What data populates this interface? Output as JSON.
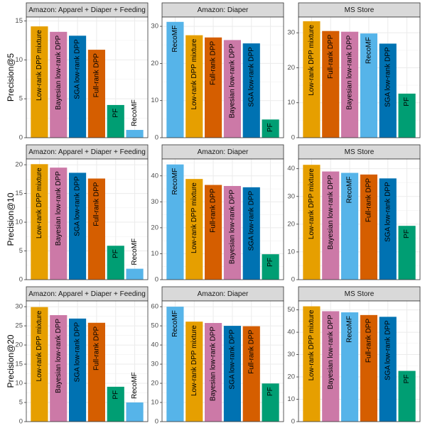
{
  "chart_data": {
    "type": "bar",
    "grid": true,
    "legend": "none",
    "colors": {
      "Low-rank DPP mixture": "#E69F00",
      "Bayesian low-rank DPP": "#CC79A7",
      "SGA low-rank DPP": "#0072B2",
      "Full-rank DPP": "#D55E00",
      "PF": "#009E73",
      "RecoMF": "#56B4E9"
    },
    "rows": [
      {
        "ylabel": "Precision@5",
        "panels": [
          {
            "title": "Amazon: Apparel + Diaper + Feeding",
            "ylim": [
              0,
              15.5
            ],
            "yticks": [
              0,
              5,
              10,
              15
            ],
            "categories": [
              "Low-rank DPP mixture",
              "Bayesian low-rank DPP",
              "SGA low-rank DPP",
              "Full-rank DPP",
              "PF",
              "RecoMF"
            ],
            "values": [
              14.3,
              13.6,
              13.1,
              11.3,
              4.2,
              1.0
            ]
          },
          {
            "title": "Amazon: Diaper",
            "ylim": [
              0,
              32.5
            ],
            "yticks": [
              0,
              10,
              20,
              30
            ],
            "categories": [
              "RecoMF",
              "Low-rank DPP mixture",
              "Full-rank DPP",
              "Bayesian low-rank DPP",
              "SGA low-rank DPP",
              "PF"
            ],
            "values": [
              31.2,
              27.6,
              27.0,
              26.3,
              25.4,
              4.9
            ]
          },
          {
            "title": "MS Store",
            "ylim": [
              0,
              34.5
            ],
            "yticks": [
              0,
              10,
              20,
              30
            ],
            "categories": [
              "Low-rank DPP mixture",
              "Full-rank DPP",
              "Bayesian low-rank DPP",
              "RecoMF",
              "SGA low-rank DPP",
              "PF"
            ],
            "values": [
              33.3,
              30.5,
              30.3,
              29.8,
              26.9,
              12.6
            ]
          }
        ]
      },
      {
        "ylabel": "Precision@10",
        "panels": [
          {
            "title": "Amazon: Apparel + Diaper + Feeding",
            "ylim": [
              0,
              21
            ],
            "yticks": [
              0,
              5,
              10,
              15,
              20
            ],
            "categories": [
              "Low-rank DPP mixture",
              "Bayesian low-rank DPP",
              "SGA low-rank DPP",
              "Full-rank DPP",
              "PF",
              "RecoMF"
            ],
            "values": [
              20.1,
              19.5,
              18.6,
              17.6,
              5.9,
              1.9
            ]
          },
          {
            "title": "Amazon: Diaper",
            "ylim": [
              0,
              46.5
            ],
            "yticks": [
              0,
              10,
              20,
              30,
              40
            ],
            "categories": [
              "RecoMF",
              "Low-rank DPP mixture",
              "Full-rank DPP",
              "Bayesian low-rank DPP",
              "SGA low-rank DPP",
              "PF"
            ],
            "values": [
              44.4,
              38.8,
              36.5,
              36.1,
              35.6,
              9.8
            ]
          },
          {
            "title": "MS Store",
            "ylim": [
              0,
              43.5
            ],
            "yticks": [
              0,
              10,
              20,
              30,
              40
            ],
            "categories": [
              "Low-rank DPP mixture",
              "Bayesian low-rank DPP",
              "RecoMF",
              "Full-rank DPP",
              "SGA low-rank DPP",
              "PF"
            ],
            "values": [
              41.4,
              39.0,
              38.5,
              37.9,
              36.5,
              19.4
            ]
          }
        ]
      },
      {
        "ylabel": "Precision@20",
        "panels": [
          {
            "title": "Amazon: Apparel + Diaper + Feeding",
            "ylim": [
              0,
              31.5
            ],
            "yticks": [
              0,
              5,
              10,
              15,
              20,
              25,
              30
            ],
            "categories": [
              "Low-rank DPP mixture",
              "Bayesian low-rank DPP",
              "SGA low-rank DPP",
              "Full-rank DPP",
              "PF",
              "RecoMF"
            ],
            "values": [
              29.9,
              27.8,
              26.9,
              25.8,
              9.1,
              5.0
            ]
          },
          {
            "title": "Amazon: Diaper",
            "ylim": [
              0,
              63
            ],
            "yticks": [
              0,
              10,
              20,
              30,
              40,
              50,
              60
            ],
            "categories": [
              "RecoMF",
              "Low-rank DPP mixture",
              "Bayesian low-rank DPP",
              "SGA low-rank DPP",
              "Full-rank DPP",
              "PF"
            ],
            "values": [
              60.0,
              52.2,
              51.5,
              50.0,
              49.8,
              19.9
            ]
          },
          {
            "title": "MS Store",
            "ylim": [
              0,
              54
            ],
            "yticks": [
              0,
              10,
              20,
              30,
              40,
              50
            ],
            "categories": [
              "Low-rank DPP mixture",
              "Bayesian low-rank DPP",
              "RecoMF",
              "Full-rank DPP",
              "SGA low-rank DPP",
              "PF"
            ],
            "values": [
              51.6,
              49.4,
              48.9,
              47.7,
              46.9,
              22.7
            ]
          }
        ]
      }
    ]
  }
}
